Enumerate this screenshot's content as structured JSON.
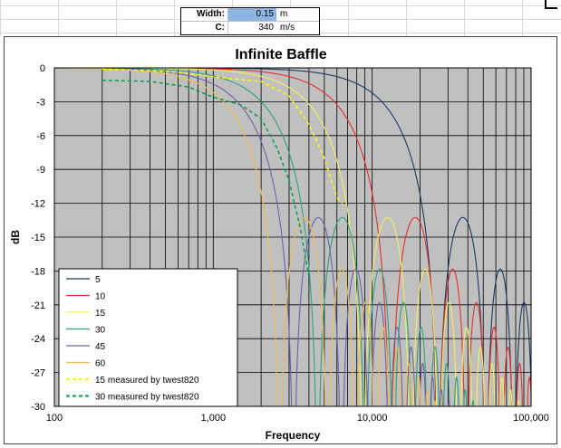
{
  "parameters": [
    {
      "label": "Width:",
      "value": "0.15",
      "unit": "m",
      "highlight": true
    },
    {
      "label": "C:",
      "value": "340",
      "unit": "m/s",
      "highlight": false
    }
  ],
  "chart_data": {
    "type": "line",
    "title": "Infinite Baffle",
    "xlabel": "Frequency",
    "ylabel": "dB",
    "xscale": "log",
    "xlim": [
      100,
      100000
    ],
    "ylim": [
      -30,
      0
    ],
    "x_ticks": [
      100,
      1000,
      10000,
      100000
    ],
    "x_tick_labels": [
      "100",
      "1,000",
      "10,000",
      "100,000"
    ],
    "y_ticks": [
      0,
      -3,
      -6,
      -9,
      -12,
      -15,
      -18,
      -21,
      -24,
      -27,
      -30
    ],
    "grid": true,
    "plot_background": "#c0c0c0",
    "legend_position": "bottom-left",
    "model": {
      "width_m": 0.15,
      "speed_of_sound_mps": 340
    },
    "series": [
      {
        "name": "5",
        "color": "#1f3864",
        "dashed": false,
        "angle_deg": 5
      },
      {
        "name": "10",
        "color": "#e03030",
        "dashed": false,
        "angle_deg": 10
      },
      {
        "name": "15",
        "color": "#f0f060",
        "dashed": false,
        "angle_deg": 15
      },
      {
        "name": "30",
        "color": "#30a080",
        "dashed": false,
        "angle_deg": 30
      },
      {
        "name": "45",
        "color": "#7060a8",
        "dashed": false,
        "angle_deg": 45
      },
      {
        "name": "60",
        "color": "#e8c050",
        "dashed": false,
        "angle_deg": 60
      },
      {
        "name": "15 measured  by twest820",
        "color": "#ffff00",
        "dashed": true,
        "points": [
          [
            200,
            -0.1
          ],
          [
            500,
            -0.3
          ],
          [
            800,
            -0.6
          ],
          [
            1000,
            -0.8
          ],
          [
            2000,
            -1.2
          ],
          [
            3000,
            -2.5
          ],
          [
            4000,
            -5
          ],
          [
            5000,
            -8
          ],
          [
            6000,
            -11.5
          ],
          [
            6500,
            -12
          ]
        ]
      },
      {
        "name": "30 measured  by twest820",
        "color": "#00a050",
        "dashed": true,
        "points": [
          [
            200,
            -1.1
          ],
          [
            400,
            -1.2
          ],
          [
            700,
            -1.7
          ],
          [
            1000,
            -2.6
          ],
          [
            1500,
            -3.3
          ],
          [
            2000,
            -4.5
          ],
          [
            2500,
            -7
          ],
          [
            3000,
            -10
          ],
          [
            3500,
            -14
          ],
          [
            4000,
            -18.5
          ]
        ]
      }
    ]
  }
}
